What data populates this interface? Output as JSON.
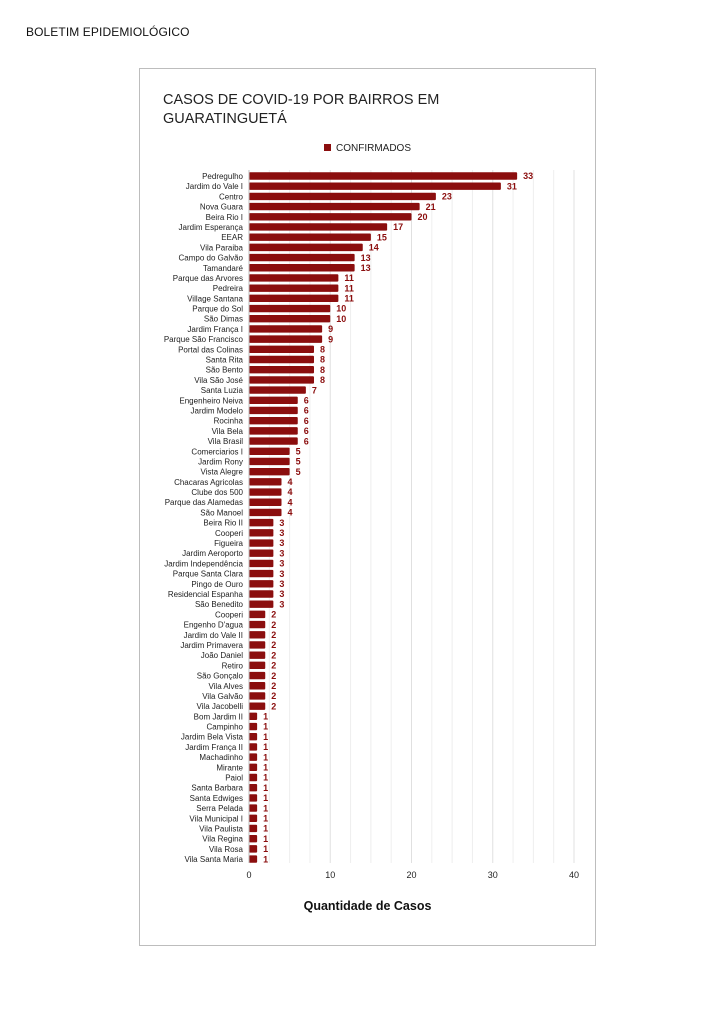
{
  "page": {
    "header": "BOLETIM EPIDEMIOLÓGICO"
  },
  "chart_data": {
    "type": "bar",
    "orientation": "horizontal",
    "title": "CASOS DE COVID-19 POR BAIRROS EM GUARATINGUETÁ",
    "xlabel": "Quantidade de Casos",
    "ylabel": "",
    "xlim": [
      0,
      40
    ],
    "xticks": [
      0,
      10,
      20,
      30,
      40
    ],
    "grid": "vertical",
    "legend_position": "top",
    "bar_color": "#8b0e0e",
    "series": [
      {
        "name": "CONFIRMADOS",
        "color": "#8b0e0e"
      }
    ],
    "categories": [
      "Pedregulho",
      "Jardim do Vale I",
      "Centro",
      "Nova Guara",
      "Beira Rio I",
      "Jardim Esperança",
      "EEAR",
      "Vila Paraiba",
      "Campo do Galvão",
      "Tamandaré",
      "Parque das Arvores",
      "Pedreira",
      "Village Santana",
      "Parque do Sol",
      "São Dimas",
      "Jardim França I",
      "Parque São Francisco",
      "Portal das Colinas",
      "Santa Rita",
      "São Bento",
      "Vila São José",
      "Santa Luzia",
      "Engenheiro Neiva",
      "Jardim Modelo",
      "Rocinha",
      "Vila Bela",
      "Vila Brasil",
      "Comerciarios I",
      "Jardim Rony",
      "Vista Alegre",
      "Chacaras Agricolas",
      "Clube dos 500",
      "Parque das Alamedas",
      "São Manoel",
      "Beira Rio II",
      "Cooperi",
      "Figueira",
      "Jardim Aeroporto",
      "Jardim Independência",
      "Parque Santa Clara",
      "Pingo de Ouro",
      "Residencial Espanha",
      "São Benedito",
      "Cooperi",
      "Engenho D'agua",
      "Jardim do Vale II",
      "Jardim Primavera",
      "João Daniel",
      "Retiro",
      "São Gonçalo",
      "Vila Alves",
      "Vila Galvão",
      "Vila Jacobelli",
      "Bom Jardim II",
      "Campinho",
      "Jardim Bela Vista",
      "Jardim França II",
      "Machadinho",
      "Mirante",
      "Paiol",
      "Santa Barbara",
      "Santa Edwiges",
      "Serra Pelada",
      "Vila Municipal I",
      "Vila Paulista",
      "Vila Regina",
      "Vila Rosa",
      "Vila Santa Maria"
    ],
    "values": [
      33,
      31,
      23,
      21,
      20,
      17,
      15,
      14,
      13,
      13,
      11,
      11,
      11,
      10,
      10,
      9,
      9,
      8,
      8,
      8,
      8,
      7,
      6,
      6,
      6,
      6,
      6,
      5,
      5,
      5,
      4,
      4,
      4,
      4,
      3,
      3,
      3,
      3,
      3,
      3,
      3,
      3,
      3,
      2,
      2,
      2,
      2,
      2,
      2,
      2,
      2,
      2,
      2,
      1,
      1,
      1,
      1,
      1,
      1,
      1,
      1,
      1,
      1,
      1,
      1,
      1,
      1,
      1
    ]
  }
}
